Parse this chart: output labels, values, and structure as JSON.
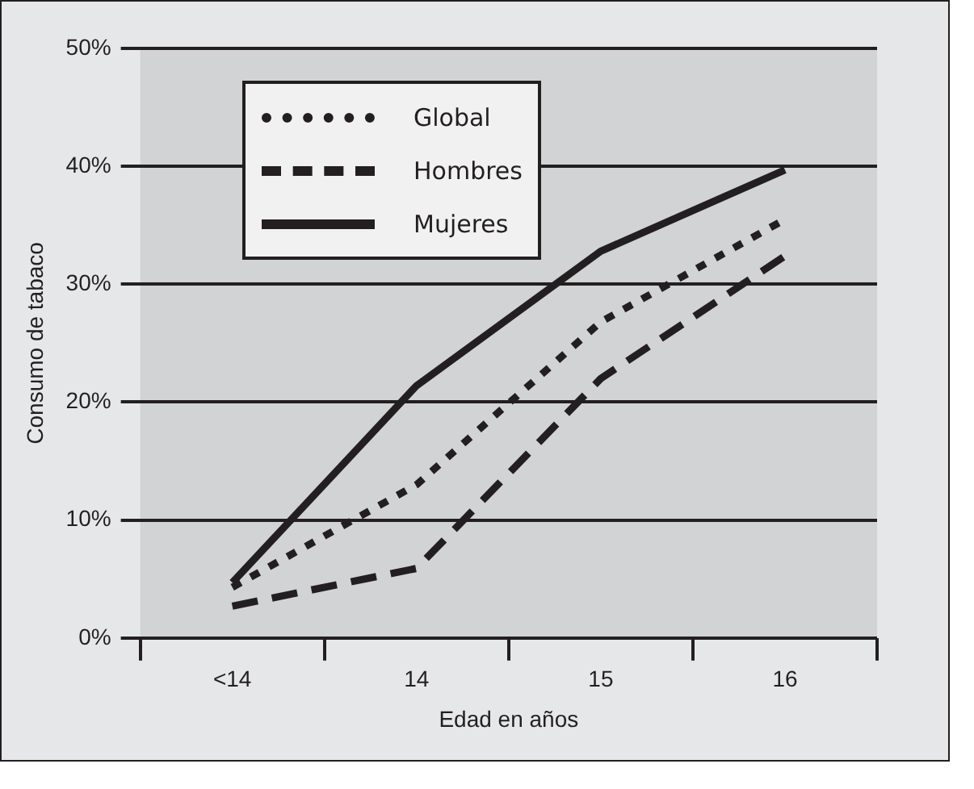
{
  "chart_data": {
    "type": "line",
    "xlabel": "Edad en años",
    "ylabel": "Consumo de tabaco",
    "categories": [
      "<14",
      "14",
      "15",
      "16"
    ],
    "series": [
      {
        "name": "Global",
        "color": "#231f20",
        "line_style": "dotted",
        "values": [
          4.3,
          13,
          26.8,
          35.5
        ]
      },
      {
        "name": "Hombres",
        "color": "#231f20",
        "line_style": "dashed",
        "values": [
          2.7,
          5.9,
          22,
          32.4
        ]
      },
      {
        "name": "Mujeres",
        "color": "#231f20",
        "line_style": "solid",
        "values": [
          4.7,
          21.4,
          32.8,
          39.7
        ]
      }
    ],
    "ylim": [
      0,
      50
    ],
    "yticks": [
      {
        "value": 0,
        "label": "0%"
      },
      {
        "value": 10,
        "label": "10%"
      },
      {
        "value": 20,
        "label": "20%"
      },
      {
        "value": 30,
        "label": "30%"
      },
      {
        "value": 40,
        "label": "40%"
      },
      {
        "value": 50,
        "label": "50%"
      }
    ],
    "grid": "y",
    "legend": "top left",
    "marker": "none"
  }
}
